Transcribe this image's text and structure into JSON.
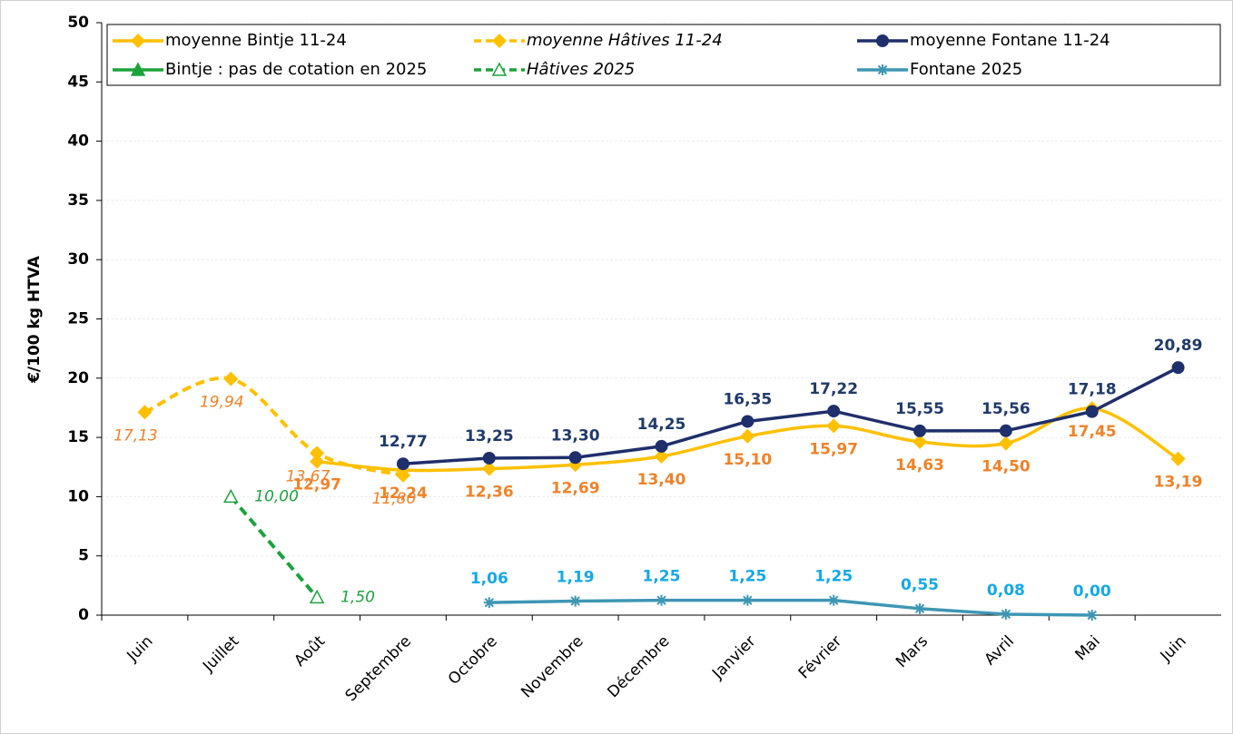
{
  "chart_data": {
    "type": "line",
    "y_label": "€/100 kg HTVA",
    "categories": [
      "Juin",
      "Juillet",
      "Août",
      "Septembre",
      "Octobre",
      "Novembre",
      "Décembre",
      "Janvier",
      "Février",
      "Mars",
      "Avril",
      "Mai",
      "Juin"
    ],
    "ylim": [
      0,
      50
    ],
    "yticks": [
      0,
      5,
      10,
      15,
      20,
      25,
      30,
      35,
      40,
      45,
      50
    ],
    "grid": true,
    "legend": "top",
    "series": [
      {
        "name": "moyenne Bintje 11-24",
        "color": "#FFC000",
        "marker": "diamond",
        "dash": false,
        "smooth": true,
        "label_color": "#F08228",
        "italic": false,
        "values": [
          null,
          null,
          12.97,
          12.24,
          12.36,
          12.69,
          13.4,
          15.1,
          15.97,
          14.63,
          14.5,
          17.45,
          13.19
        ],
        "value_labels": [
          null,
          null,
          "12,97",
          "12,24",
          "12,36",
          "12,69",
          "13,40",
          "15,10",
          "15,97",
          "14,63",
          "14,50",
          "17,45",
          "13,19"
        ]
      },
      {
        "name": "moyenne Hâtives 11-24",
        "color": "#FFC000",
        "marker": "diamond",
        "dash": true,
        "smooth": true,
        "label_color": "#F08228",
        "italic": true,
        "values": [
          17.13,
          19.94,
          13.67,
          11.8,
          null,
          null,
          null,
          null,
          null,
          null,
          null,
          null,
          null
        ],
        "value_labels": [
          "17,13",
          "19,94",
          "13,67",
          "11,80",
          null,
          null,
          null,
          null,
          null,
          null,
          null,
          null,
          null
        ]
      },
      {
        "name": "moyenne Fontane 11-24",
        "color": "#1F2F6B",
        "marker": "circle",
        "dash": false,
        "smooth": false,
        "label_color": "#1F3A6B",
        "italic": false,
        "values": [
          null,
          null,
          null,
          12.77,
          13.25,
          13.3,
          14.25,
          16.35,
          17.22,
          15.55,
          15.56,
          17.18,
          20.89
        ],
        "value_labels": [
          null,
          null,
          null,
          "12,77",
          "13,25",
          "13,30",
          "14,25",
          "16,35",
          "17,22",
          "15,55",
          "15,56",
          "17,18",
          "20,89"
        ]
      },
      {
        "name": "Bintje : pas de cotation en 2025",
        "color": "#1BA33B",
        "marker": "triangle",
        "dash": false,
        "smooth": false,
        "label_color": "#1BA33B",
        "italic": false,
        "values": [
          null,
          null,
          null,
          null,
          null,
          null,
          null,
          null,
          null,
          null,
          null,
          null,
          null
        ]
      },
      {
        "name": "Hâtives 2025",
        "color": "#1BA33B",
        "marker": "open-triangle",
        "dash": true,
        "smooth": false,
        "label_color": "#1BA33B",
        "italic": true,
        "values": [
          null,
          10.0,
          1.5,
          null,
          null,
          null,
          null,
          null,
          null,
          null,
          null,
          null,
          null
        ],
        "value_labels": [
          null,
          "10,00",
          "1,50",
          null,
          null,
          null,
          null,
          null,
          null,
          null,
          null,
          null,
          null
        ]
      },
      {
        "name": "Fontane 2025",
        "color": "#3E96B4",
        "marker": "star",
        "dash": false,
        "smooth": false,
        "label_color": "#14A8E8",
        "italic": false,
        "values": [
          null,
          null,
          null,
          null,
          1.06,
          1.19,
          1.25,
          1.25,
          1.25,
          0.55,
          0.08,
          0.0,
          null
        ],
        "value_labels": [
          null,
          null,
          null,
          null,
          "1,06",
          "1,19",
          "1,25",
          "1,25",
          "1,25",
          "0,55",
          "0,08",
          "0,00",
          null
        ]
      }
    ]
  }
}
